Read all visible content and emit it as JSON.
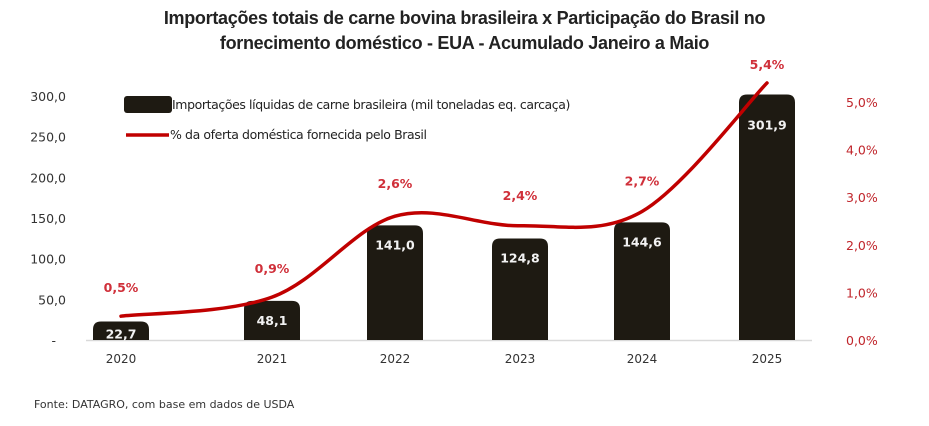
{
  "chart_data": {
    "type": "bar",
    "title_line1": "Importações totais de carne bovina brasileira x Participação do Brasil no",
    "title_line2": "fornecimento doméstico - EUA - Acumulado Janeiro a Maio",
    "categories": [
      "2020",
      "2021",
      "2022",
      "2023",
      "2024",
      "2025"
    ],
    "series": [
      {
        "name": "Importações líquidas de carne brasileira (mil toneladas eq. carcaça)",
        "type": "bar",
        "axis": "left",
        "color": "#1e1a12",
        "values": [
          22.7,
          48.1,
          141.0,
          124.8,
          144.6,
          301.9
        ],
        "labels": [
          "22,7",
          "48,1",
          "141,0",
          "124,8",
          "144,6",
          "301,9"
        ]
      },
      {
        "name": "% da oferta doméstica fornecida pelo Brasil",
        "type": "line",
        "axis": "right",
        "color": "#c00000",
        "values": [
          0.5,
          0.9,
          2.6,
          2.4,
          2.7,
          5.4
        ],
        "labels": [
          "0,5%",
          "0,9%",
          "2,6%",
          "2,4%",
          "2,7%",
          "5,4%"
        ]
      }
    ],
    "left_axis": {
      "ylim": [
        0,
        300
      ],
      "ticks": [
        0,
        50,
        100,
        150,
        200,
        250,
        300
      ],
      "tick_labels": [
        "-",
        "50,0",
        "100,0",
        "150,0",
        "200,0",
        "250,0",
        "300,0"
      ]
    },
    "right_axis": {
      "ylim": [
        0,
        5
      ],
      "ticks": [
        0,
        1,
        2,
        3,
        4,
        5
      ],
      "tick_labels": [
        "0,0%",
        "1,0%",
        "2,0%",
        "3,0%",
        "4,0%",
        "5,0%"
      ],
      "color": "#c0252b"
    },
    "xlabel": "",
    "ylabel": "",
    "grid": false,
    "legend_position": "top-left"
  },
  "source": "Fonte: DATAGRO, com base em dados de USDA"
}
